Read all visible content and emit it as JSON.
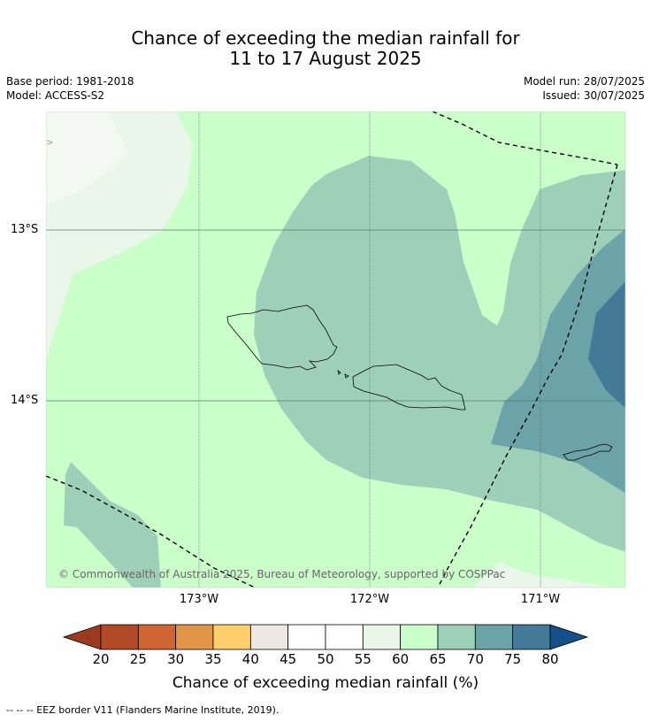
{
  "title_line1": "Chance of exceeding the median rainfall for",
  "title_line2": "11 to 17 August 2025",
  "meta": {
    "base_period": "Base period: 1981-2018",
    "model": "Model: ACCESS-S2",
    "model_run": "Model run: 28/07/2025",
    "issued": "Issued: 30/07/2025"
  },
  "axes": {
    "lat_labels": [
      "13°S",
      "14°S"
    ],
    "lon_labels": [
      "173°W",
      "172°W",
      "171°W"
    ]
  },
  "copyright": "© Commonwealth of Australia 2025, Bureau of Meteorology, supported by COSPPac",
  "colorbar": {
    "ticks": [
      "20",
      "25",
      "30",
      "35",
      "40",
      "45",
      "50",
      "55",
      "60",
      "65",
      "70",
      "75",
      "80"
    ],
    "colors": [
      "#9c3a1e",
      "#b34a27",
      "#cf6533",
      "#e29447",
      "#fdce6a",
      "#ede8e4",
      "#ffffff",
      "#ffffff",
      "#eaf6e9",
      "#caffca",
      "#9ed0b9",
      "#6ca3a8",
      "#427a98",
      "#16508a"
    ],
    "label": "Chance of exceeding median rainfall (%)"
  },
  "footer": "--  --  -- EEZ border V11 (Flanders Marine Institute, 2019)."
}
